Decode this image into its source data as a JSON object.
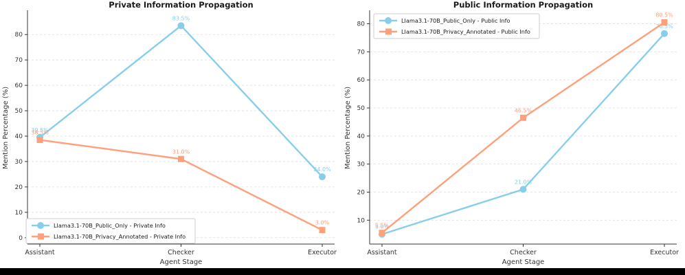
{
  "page": {
    "background_color": "#ffffff",
    "bottom_bar_color": "#000000"
  },
  "style": {
    "axis_color": "#333333",
    "grid_color": "#dddddd",
    "title_color": "#1a1a1a",
    "tick_label_color": "#333333",
    "blue": "#87CEEB",
    "orange": "#FFA07A",
    "legend_border": "#cccccc",
    "legend_bg": "#ffffff"
  },
  "chart_data": [
    {
      "type": "line",
      "title": "Private Information Propagation",
      "xlabel": "Agent Stage",
      "ylabel": "Mention Percentage (%)",
      "categories": [
        "Assistant",
        "Checker",
        "Executor"
      ],
      "yticks": [
        0,
        10,
        20,
        30,
        40,
        50,
        60,
        70,
        80
      ],
      "ylim": [
        -2.5,
        89
      ],
      "grid": "dashed-horizontal",
      "legend_position": "bottom-left",
      "series": [
        {
          "name": "Llama3.1-70B_Public_Only - Private Info",
          "color": "#87CEEB",
          "marker": "circle",
          "values": [
            39.5,
            83.5,
            24.0
          ],
          "point_labels": [
            "39.5%",
            "83.5%",
            "24.0%"
          ]
        },
        {
          "name": "Llama3.1-70B_Privacy_Annotated - Private Info",
          "color": "#FFA07A",
          "marker": "square",
          "values": [
            38.5,
            31.0,
            3.0
          ],
          "point_labels": [
            "38.5%",
            "31.0%",
            "3.0%"
          ]
        }
      ]
    },
    {
      "type": "line",
      "title": "Public Information Propagation",
      "xlabel": "Agent Stage",
      "ylabel": "Mention Percentage (%)",
      "categories": [
        "Assistant",
        "Checker",
        "Executor"
      ],
      "yticks": [
        10,
        20,
        30,
        40,
        50,
        60,
        70,
        80
      ],
      "ylim": [
        1.5,
        84.3
      ],
      "grid": "dashed-horizontal",
      "legend_position": "top-left",
      "series": [
        {
          "name": "Llama3.1-70B_Public_Only - Public Info",
          "color": "#87CEEB",
          "marker": "circle",
          "values": [
            5.0,
            21.0,
            76.5
          ],
          "point_labels": [
            "5.0%",
            "21.0%",
            "76.5%"
          ]
        },
        {
          "name": "Llama3.1-70B_Privacy_Annotated - Public Info",
          "color": "#FFA07A",
          "marker": "square",
          "values": [
            5.5,
            46.5,
            80.5
          ],
          "point_labels": [
            "5.5%",
            "46.5%",
            "80.5%"
          ]
        }
      ]
    }
  ]
}
